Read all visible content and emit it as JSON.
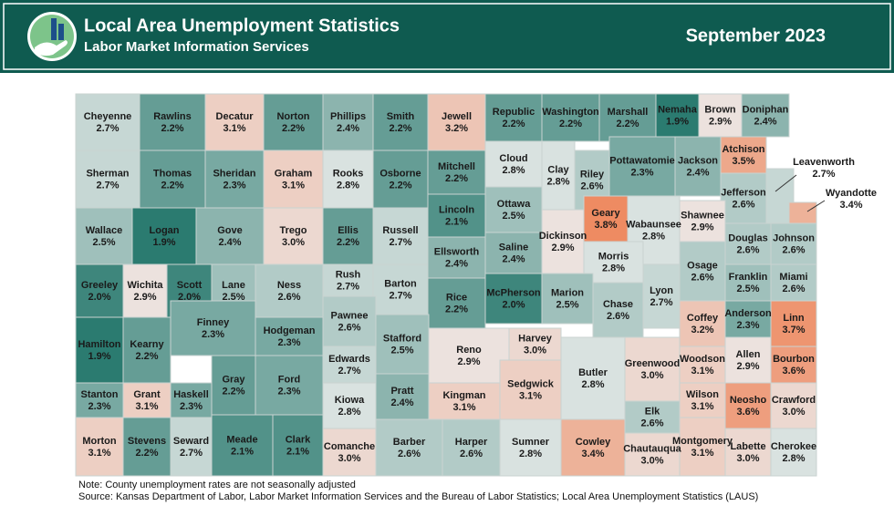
{
  "header": {
    "title": "Local Area Unemployment Statistics",
    "subtitle": "Labor Market Information Services",
    "period": "September 2023"
  },
  "counties": [
    {
      "name": "Cheyenne",
      "rate": 2.7,
      "rate_label": "2.7%"
    },
    {
      "name": "Rawlins",
      "rate": 2.2,
      "rate_label": "2.2%"
    },
    {
      "name": "Decatur",
      "rate": 3.1,
      "rate_label": "3.1%"
    },
    {
      "name": "Norton",
      "rate": 2.2,
      "rate_label": "2.2%"
    },
    {
      "name": "Phillips",
      "rate": 2.4,
      "rate_label": "2.4%"
    },
    {
      "name": "Smith",
      "rate": 2.2,
      "rate_label": "2.2%"
    },
    {
      "name": "Jewell",
      "rate": 3.2,
      "rate_label": "3.2%"
    },
    {
      "name": "Republic",
      "rate": 2.2,
      "rate_label": "2.2%"
    },
    {
      "name": "Washington",
      "rate": 2.2,
      "rate_label": "2.2%"
    },
    {
      "name": "Marshall",
      "rate": 2.2,
      "rate_label": "2.2%"
    },
    {
      "name": "Nemaha",
      "rate": 1.9,
      "rate_label": "1.9%"
    },
    {
      "name": "Brown",
      "rate": 2.9,
      "rate_label": "2.9%"
    },
    {
      "name": "Doniphan",
      "rate": 2.4,
      "rate_label": "2.4%"
    },
    {
      "name": "Sherman",
      "rate": 2.7,
      "rate_label": "2.7%"
    },
    {
      "name": "Thomas",
      "rate": 2.2,
      "rate_label": "2.2%"
    },
    {
      "name": "Sheridan",
      "rate": 2.3,
      "rate_label": "2.3%"
    },
    {
      "name": "Graham",
      "rate": 3.1,
      "rate_label": "3.1%"
    },
    {
      "name": "Rooks",
      "rate": 2.8,
      "rate_label": "2.8%"
    },
    {
      "name": "Osborne",
      "rate": 2.2,
      "rate_label": "2.2%"
    },
    {
      "name": "Mitchell",
      "rate": 2.2,
      "rate_label": "2.2%"
    },
    {
      "name": "Cloud",
      "rate": 2.8,
      "rate_label": "2.8%"
    },
    {
      "name": "Clay",
      "rate": 2.8,
      "rate_label": "2.8%"
    },
    {
      "name": "Riley",
      "rate": 2.6,
      "rate_label": "2.6%"
    },
    {
      "name": "Pottawatomie",
      "rate": 2.3,
      "rate_label": "2.3%"
    },
    {
      "name": "Jackson",
      "rate": 2.4,
      "rate_label": "2.4%"
    },
    {
      "name": "Atchison",
      "rate": 3.5,
      "rate_label": "3.5%"
    },
    {
      "name": "Leavenworth",
      "rate": 2.7,
      "rate_label": "2.7%"
    },
    {
      "name": "Jefferson",
      "rate": 2.6,
      "rate_label": "2.6%"
    },
    {
      "name": "Wallace",
      "rate": 2.5,
      "rate_label": "2.5%"
    },
    {
      "name": "Logan",
      "rate": 1.9,
      "rate_label": "1.9%"
    },
    {
      "name": "Gove",
      "rate": 2.4,
      "rate_label": "2.4%"
    },
    {
      "name": "Trego",
      "rate": 3.0,
      "rate_label": "3.0%"
    },
    {
      "name": "Ellis",
      "rate": 2.2,
      "rate_label": "2.2%"
    },
    {
      "name": "Russell",
      "rate": 2.7,
      "rate_label": "2.7%"
    },
    {
      "name": "Lincoln",
      "rate": 2.1,
      "rate_label": "2.1%"
    },
    {
      "name": "Ottawa",
      "rate": 2.5,
      "rate_label": "2.5%"
    },
    {
      "name": "Dickinson",
      "rate": 2.9,
      "rate_label": "2.9%"
    },
    {
      "name": "Geary",
      "rate": 3.8,
      "rate_label": "3.8%"
    },
    {
      "name": "Wabaunsee",
      "rate": 2.8,
      "rate_label": "2.8%"
    },
    {
      "name": "Shawnee",
      "rate": 2.9,
      "rate_label": "2.9%"
    },
    {
      "name": "Douglas",
      "rate": 2.6,
      "rate_label": "2.6%"
    },
    {
      "name": "Johnson",
      "rate": 2.6,
      "rate_label": "2.6%"
    },
    {
      "name": "Wyandotte",
      "rate": 3.4,
      "rate_label": "3.4%"
    },
    {
      "name": "Greeley",
      "rate": 2.0,
      "rate_label": "2.0%"
    },
    {
      "name": "Wichita",
      "rate": 2.9,
      "rate_label": "2.9%"
    },
    {
      "name": "Scott",
      "rate": 2.0,
      "rate_label": "2.0%"
    },
    {
      "name": "Lane",
      "rate": 2.5,
      "rate_label": "2.5%"
    },
    {
      "name": "Ness",
      "rate": 2.6,
      "rate_label": "2.6%"
    },
    {
      "name": "Rush",
      "rate": 2.7,
      "rate_label": "2.7%"
    },
    {
      "name": "Barton",
      "rate": 2.7,
      "rate_label": "2.7%"
    },
    {
      "name": "Ellsworth",
      "rate": 2.4,
      "rate_label": "2.4%"
    },
    {
      "name": "Saline",
      "rate": 2.4,
      "rate_label": "2.4%"
    },
    {
      "name": "Morris",
      "rate": 2.8,
      "rate_label": "2.8%"
    },
    {
      "name": "Osage",
      "rate": 2.6,
      "rate_label": "2.6%"
    },
    {
      "name": "Franklin",
      "rate": 2.5,
      "rate_label": "2.5%"
    },
    {
      "name": "Miami",
      "rate": 2.6,
      "rate_label": "2.6%"
    },
    {
      "name": "Rice",
      "rate": 2.2,
      "rate_label": "2.2%"
    },
    {
      "name": "McPherson",
      "rate": 2.0,
      "rate_label": "2.0%"
    },
    {
      "name": "Marion",
      "rate": 2.5,
      "rate_label": "2.5%"
    },
    {
      "name": "Chase",
      "rate": 2.6,
      "rate_label": "2.6%"
    },
    {
      "name": "Lyon",
      "rate": 2.7,
      "rate_label": "2.7%"
    },
    {
      "name": "Hamilton",
      "rate": 1.9,
      "rate_label": "1.9%"
    },
    {
      "name": "Kearny",
      "rate": 2.2,
      "rate_label": "2.2%"
    },
    {
      "name": "Finney",
      "rate": 2.3,
      "rate_label": "2.3%"
    },
    {
      "name": "Hodgeman",
      "rate": 2.3,
      "rate_label": "2.3%"
    },
    {
      "name": "Pawnee",
      "rate": 2.6,
      "rate_label": "2.6%"
    },
    {
      "name": "Stafford",
      "rate": 2.5,
      "rate_label": "2.5%"
    },
    {
      "name": "Reno",
      "rate": 2.9,
      "rate_label": "2.9%"
    },
    {
      "name": "Harvey",
      "rate": 3.0,
      "rate_label": "3.0%"
    },
    {
      "name": "Coffey",
      "rate": 3.2,
      "rate_label": "3.2%"
    },
    {
      "name": "Anderson",
      "rate": 2.3,
      "rate_label": "2.3%"
    },
    {
      "name": "Linn",
      "rate": 3.7,
      "rate_label": "3.7%"
    },
    {
      "name": "Edwards",
      "rate": 2.7,
      "rate_label": "2.7%"
    },
    {
      "name": "Gray",
      "rate": 2.2,
      "rate_label": "2.2%"
    },
    {
      "name": "Ford",
      "rate": 2.3,
      "rate_label": "2.3%"
    },
    {
      "name": "Butler",
      "rate": 2.8,
      "rate_label": "2.8%"
    },
    {
      "name": "Greenwood",
      "rate": 3.0,
      "rate_label": "3.0%"
    },
    {
      "name": "Woodson",
      "rate": 3.1,
      "rate_label": "3.1%"
    },
    {
      "name": "Allen",
      "rate": 2.9,
      "rate_label": "2.9%"
    },
    {
      "name": "Bourbon",
      "rate": 3.6,
      "rate_label": "3.6%"
    },
    {
      "name": "Stanton",
      "rate": 2.3,
      "rate_label": "2.3%"
    },
    {
      "name": "Grant",
      "rate": 3.1,
      "rate_label": "3.1%"
    },
    {
      "name": "Haskell",
      "rate": 2.3,
      "rate_label": "2.3%"
    },
    {
      "name": "Kiowa",
      "rate": 2.8,
      "rate_label": "2.8%"
    },
    {
      "name": "Pratt",
      "rate": 2.4,
      "rate_label": "2.4%"
    },
    {
      "name": "Kingman",
      "rate": 3.1,
      "rate_label": "3.1%"
    },
    {
      "name": "Sedgwick",
      "rate": 3.1,
      "rate_label": "3.1%"
    },
    {
      "name": "Wilson",
      "rate": 3.1,
      "rate_label": "3.1%"
    },
    {
      "name": "Neosho",
      "rate": 3.6,
      "rate_label": "3.6%"
    },
    {
      "name": "Crawford",
      "rate": 3.0,
      "rate_label": "3.0%"
    },
    {
      "name": "Elk",
      "rate": 2.6,
      "rate_label": "2.6%"
    },
    {
      "name": "Morton",
      "rate": 3.1,
      "rate_label": "3.1%"
    },
    {
      "name": "Stevens",
      "rate": 2.2,
      "rate_label": "2.2%"
    },
    {
      "name": "Seward",
      "rate": 2.7,
      "rate_label": "2.7%"
    },
    {
      "name": "Meade",
      "rate": 2.1,
      "rate_label": "2.1%"
    },
    {
      "name": "Clark",
      "rate": 2.1,
      "rate_label": "2.1%"
    },
    {
      "name": "Comanche",
      "rate": 3.0,
      "rate_label": "3.0%"
    },
    {
      "name": "Barber",
      "rate": 2.6,
      "rate_label": "2.6%"
    },
    {
      "name": "Harper",
      "rate": 2.6,
      "rate_label": "2.6%"
    },
    {
      "name": "Sumner",
      "rate": 2.8,
      "rate_label": "2.8%"
    },
    {
      "name": "Cowley",
      "rate": 3.4,
      "rate_label": "3.4%"
    },
    {
      "name": "Chautauqua",
      "rate": 3.0,
      "rate_label": "3.0%"
    },
    {
      "name": "Montgomery",
      "rate": 3.1,
      "rate_label": "3.1%"
    },
    {
      "name": "Labette",
      "rate": 3.0,
      "rate_label": "3.0%"
    },
    {
      "name": "Cherokee",
      "rate": 2.8,
      "rate_label": "2.8%"
    }
  ],
  "notes": [
    "Note: County unemployment rates are not seasonally adjusted",
    "Source: Kansas Department of Labor, Labor Market Information Services and the Bureau of Labor Statistics; Local Area Unemployment Statistics (LAUS)"
  ]
}
